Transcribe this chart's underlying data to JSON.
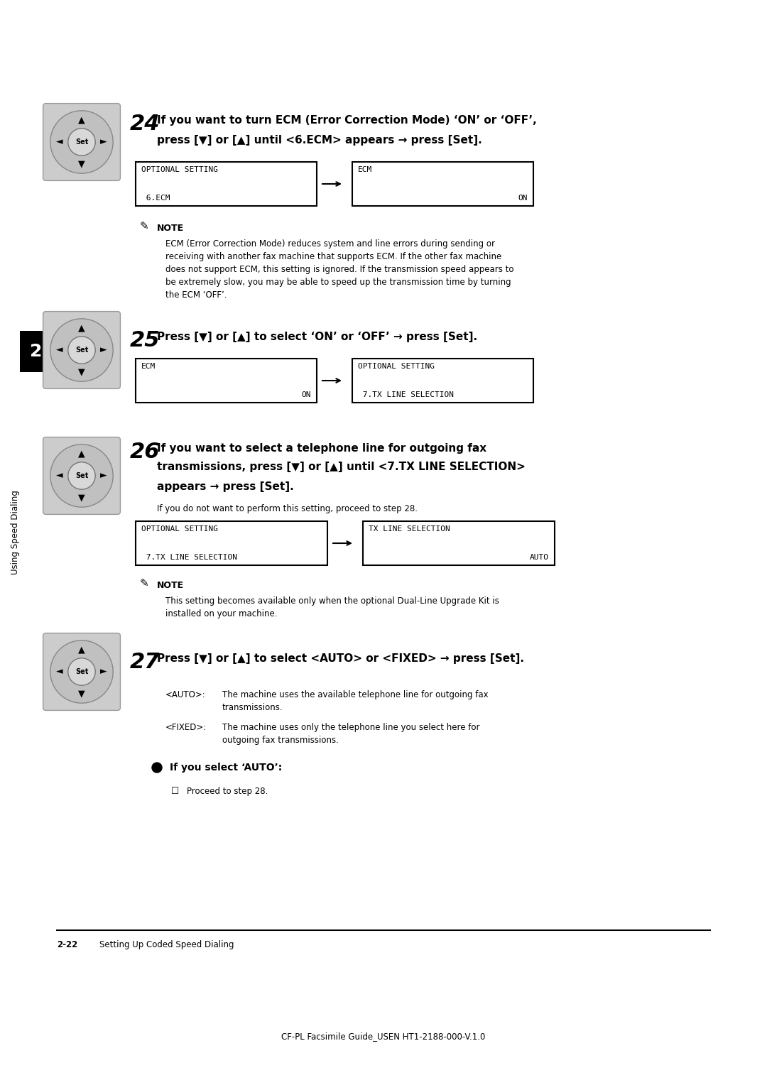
{
  "bg_color": "#ffffff",
  "page_width": 10.8,
  "page_height": 15.28,
  "step24": {
    "num": "24",
    "bold_text": "If you want to turn ECM (Error Correction Mode) ‘ON’ or ‘OFF’,",
    "bold_text2": "press [▼] or [▲] until <6.ECM> appears → press [Set].",
    "box1_line1": "OPTIONAL SETTING",
    "box1_line2": " 6.ECM",
    "box2_line1": "ECM",
    "box2_line2": "ON",
    "note_title": "NOTE",
    "note_lines": [
      "ECM (Error Correction Mode) reduces system and line errors during sending or",
      "receiving with another fax machine that supports ECM. If the other fax machine",
      "does not support ECM, this setting is ignored. If the transmission speed appears to",
      "be extremely slow, you may be able to speed up the transmission time by turning",
      "the ECM ‘OFF’."
    ]
  },
  "step25": {
    "num": "25",
    "bold_text": "Press [▼] or [▲] to select ‘ON’ or ‘OFF’ → press [Set].",
    "box1_line1": "ECM",
    "box1_line2": "ON",
    "box2_line1": "OPTIONAL SETTING",
    "box2_line2": " 7.TX LINE SELECTION"
  },
  "step26": {
    "num": "26",
    "bold_text": "If you want to select a telephone line for outgoing fax",
    "bold_text2": "transmissions, press [▼] or [▲] until <7.TX LINE SELECTION>",
    "bold_text3": "appears → press [Set].",
    "sub_text": "If you do not want to perform this setting, proceed to step 28.",
    "box1_line1": "OPTIONAL SETTING",
    "box1_line2": " 7.TX LINE SELECTION",
    "box2_line1": "TX LINE SELECTION",
    "box2_line2": "AUTO",
    "note_title": "NOTE",
    "note_lines": [
      "This setting becomes available only when the optional Dual-Line Upgrade Kit is",
      "installed on your machine."
    ]
  },
  "step27": {
    "num": "27",
    "bold_text": "Press [▼] or [▲] to select <AUTO> or <FIXED> → press [Set].",
    "auto_label": "<AUTO>:",
    "auto_text1": "The machine uses the available telephone line for outgoing fax",
    "auto_text2": "transmissions.",
    "fixed_label": "<FIXED>:",
    "fixed_text1": "The machine uses only the telephone line you select here for",
    "fixed_text2": "outgoing fax transmissions.",
    "bullet_text": "If you select ‘AUTO’:",
    "checkbox_text": "Proceed to step 28."
  },
  "chapter_num": "2",
  "sidebar_text": "Using Speed Dialing",
  "footer_text1": "2-22",
  "footer_text2": "Setting Up Coded Speed Dialing",
  "footer_bottom": "CF-PL Facsimile Guide_USEN HT1-2188-000-V.1.0"
}
